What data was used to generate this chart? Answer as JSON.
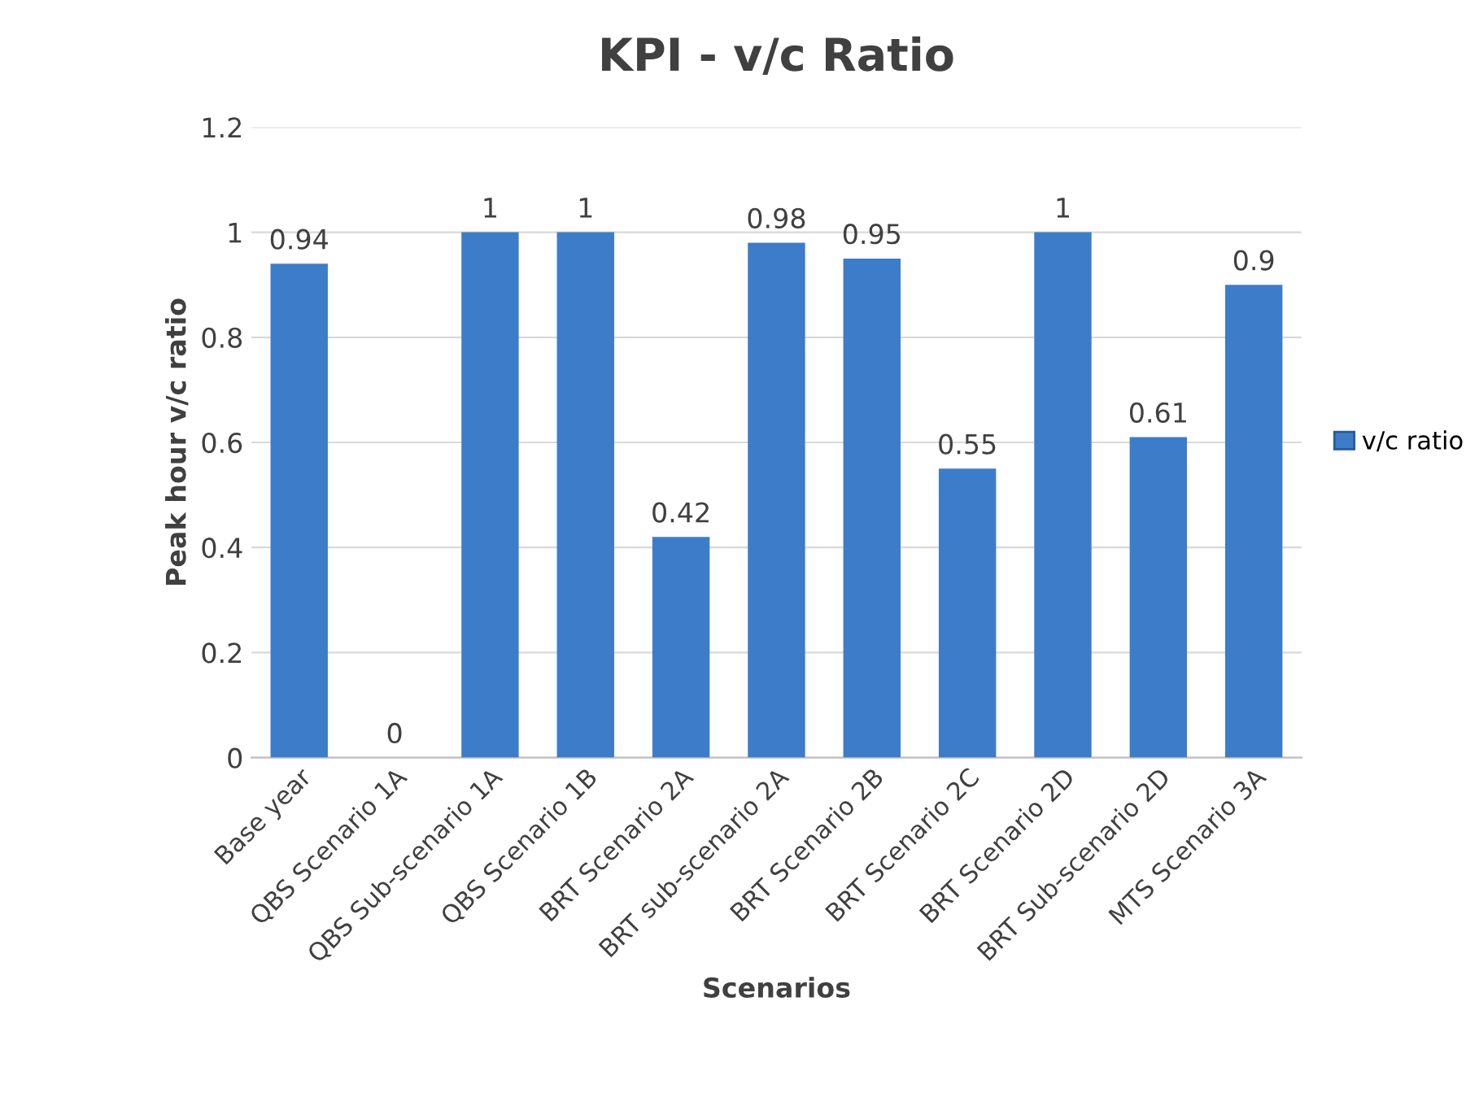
{
  "chart_data": {
    "type": "bar",
    "title": "KPI - v/c Ratio",
    "xlabel": "Scenarios",
    "ylabel": "Peak hour v/c ratio",
    "categories": [
      "Base year",
      "QBS Scenario 1A",
      "QBS Sub-scenario 1A",
      "QBS Scenario 1B",
      "BRT Scenario 2A",
      "BRT sub-scenario 2A",
      "BRT Scenario 2B",
      "BRT Scenario 2C",
      "BRT Scenario 2D",
      "BRT Sub-scenario 2D",
      "MTS Scenario 3A"
    ],
    "series": [
      {
        "name": "v/c ratio",
        "color": "#3d7cc9",
        "values": [
          0.94,
          0,
          1,
          1,
          0.42,
          0.98,
          0.95,
          0.55,
          1,
          0.61,
          0.9
        ]
      }
    ],
    "ylim": [
      0,
      1.2
    ],
    "yticks": [
      0,
      0.2,
      0.4,
      0.6,
      0.8,
      1,
      1.2
    ],
    "grid": "y",
    "legend": "right",
    "data_labels": true
  }
}
